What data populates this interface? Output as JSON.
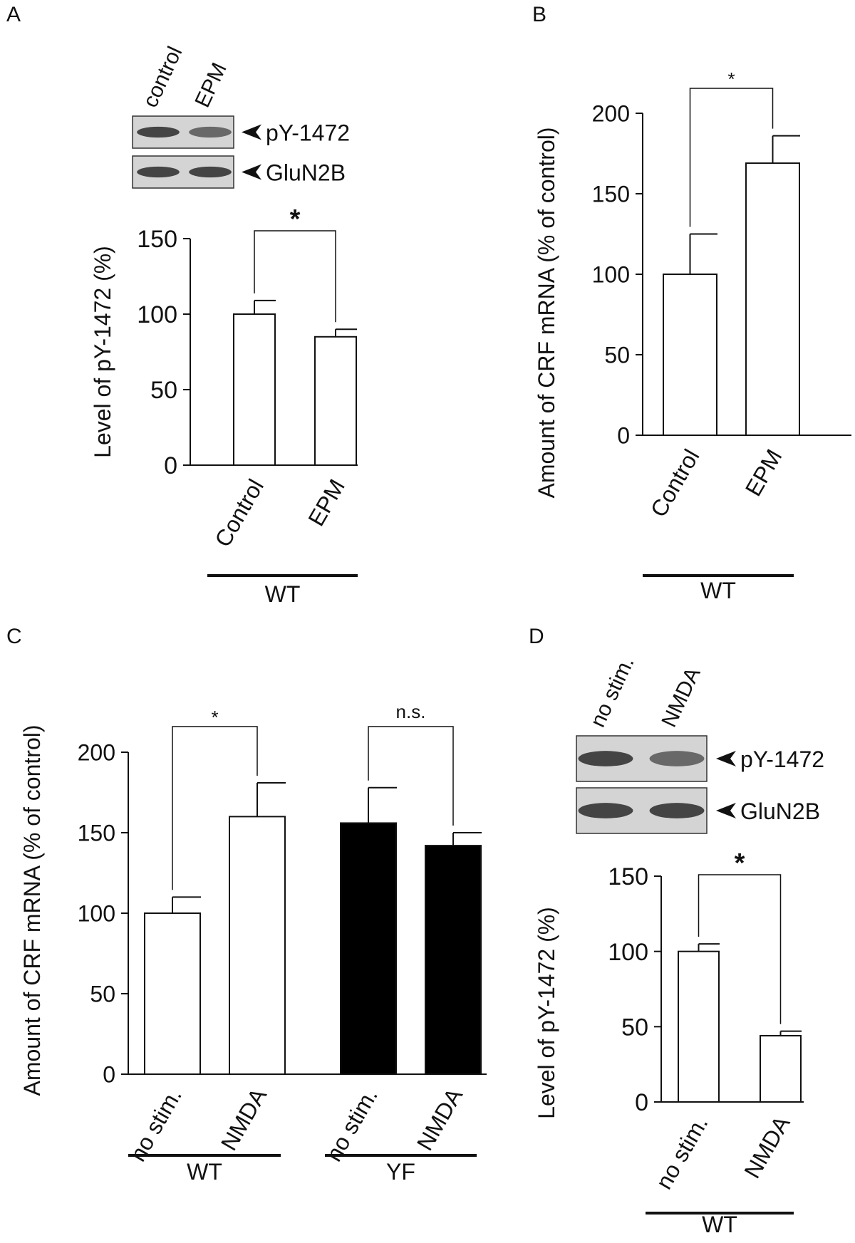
{
  "chart_data": [
    {
      "type": "bar",
      "panel": "A",
      "y_label": "Level of pY-1472 (%)",
      "ylim": [
        0,
        150
      ],
      "yticks": [
        0,
        50,
        100,
        150
      ],
      "blot": {
        "lanes": [
          "control",
          "EPM"
        ],
        "bands": [
          "pY-1472",
          "GluN2B"
        ]
      },
      "groups": [
        {
          "name": "WT",
          "color": "#ffffff",
          "annotation": "*",
          "categories": [
            "Control",
            "EPM"
          ],
          "values": [
            100,
            85
          ],
          "errors": [
            9,
            5
          ]
        }
      ]
    },
    {
      "type": "bar",
      "panel": "B",
      "y_label": "Amount of CRF mRNA (% of control)",
      "ylim": [
        0,
        200
      ],
      "yticks": [
        0,
        50,
        100,
        150,
        200
      ],
      "groups": [
        {
          "name": "WT",
          "color": "#ffffff",
          "annotation": "*",
          "categories": [
            "Control",
            "EPM"
          ],
          "values": [
            100,
            169
          ],
          "errors": [
            25,
            17
          ]
        }
      ]
    },
    {
      "type": "bar",
      "panel": "C",
      "y_label": "Amount of CRF mRNA (% of control)",
      "ylim": [
        0,
        200
      ],
      "yticks": [
        0,
        50,
        100,
        150,
        200
      ],
      "groups": [
        {
          "name": "WT",
          "color": "#ffffff",
          "annotation": "*",
          "categories": [
            "no stim.",
            "NMDA"
          ],
          "values": [
            100,
            160
          ],
          "errors": [
            10,
            21
          ]
        },
        {
          "name": "YF",
          "color": "#000000",
          "annotation": "n.s.",
          "categories": [
            "no stim.",
            "NMDA"
          ],
          "values": [
            156,
            142
          ],
          "errors": [
            22,
            8
          ]
        }
      ]
    },
    {
      "type": "bar",
      "panel": "D",
      "y_label": "Level of pY-1472 (%)",
      "ylim": [
        0,
        150
      ],
      "yticks": [
        0,
        50,
        100,
        150
      ],
      "blot": {
        "lanes": [
          "no stim.",
          "NMDA"
        ],
        "bands": [
          "pY-1472",
          "GluN2B"
        ]
      },
      "groups": [
        {
          "name": "WT",
          "color": "#ffffff",
          "annotation": "*",
          "categories": [
            "no stim.",
            "NMDA"
          ],
          "values": [
            100,
            44
          ],
          "errors": [
            5,
            3
          ]
        }
      ]
    }
  ]
}
